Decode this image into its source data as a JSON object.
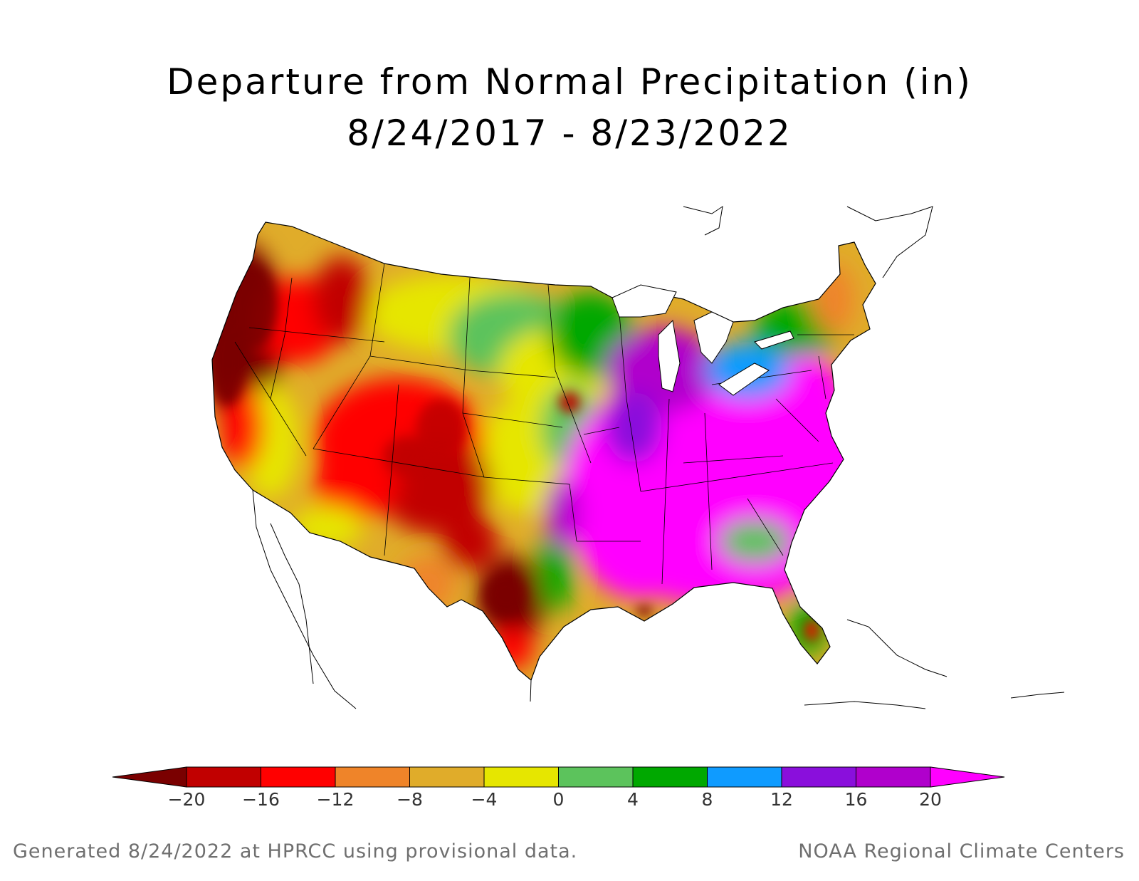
{
  "title": "Departure from Normal Precipitation (in)",
  "subtitle": "8/24/2017 - 8/23/2022",
  "legend": {
    "ticks": [
      "-20",
      "-16",
      "-12",
      "-8",
      "-4",
      "0",
      "4",
      "8",
      "12",
      "16",
      "20"
    ],
    "colors": [
      "#7a0000",
      "#c10000",
      "#ff0000",
      "#ef8429",
      "#e0ac2a",
      "#e6e600",
      "#5cc35c",
      "#00a800",
      "#0f9bff",
      "#8a0fdc",
      "#b000cc",
      "#ff00ff"
    ]
  },
  "footer": {
    "left": "Generated 8/24/2022 at HPRCC using provisional data.",
    "right": "NOAA Regional Climate Centers"
  }
}
